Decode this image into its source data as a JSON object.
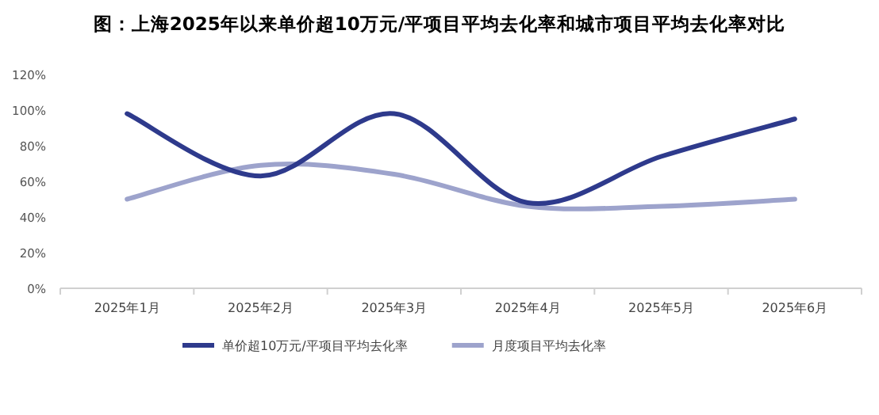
{
  "chart_data": {
    "type": "line",
    "title": "图：上海2025年以来单价超10万元/平项目平均去化率和城市项目平均去化率对比",
    "categories": [
      "2025年1月",
      "2025年2月",
      "2025年3月",
      "2025年4月",
      "2025年5月",
      "2025年6月"
    ],
    "series": [
      {
        "name": "单价超10万元/平项目平均去化率",
        "color": "#2e3a8c",
        "values": [
          98,
          63,
          98,
          48,
          74,
          95
        ]
      },
      {
        "name": "月度项目平均去化率",
        "color": "#9da3cc",
        "values": [
          50,
          69,
          64,
          46,
          46,
          50
        ]
      }
    ],
    "ylim": [
      0,
      120
    ],
    "yticks": [
      {
        "value": 0,
        "label": "0%"
      },
      {
        "value": 20,
        "label": "20%"
      },
      {
        "value": 40,
        "label": "40%"
      },
      {
        "value": 60,
        "label": "60%"
      },
      {
        "value": 80,
        "label": "80%"
      },
      {
        "value": 100,
        "label": "100%"
      },
      {
        "value": 120,
        "label": "120%"
      }
    ],
    "grid": false,
    "legend": "bottom",
    "marker": "none",
    "line_style": "solid"
  }
}
